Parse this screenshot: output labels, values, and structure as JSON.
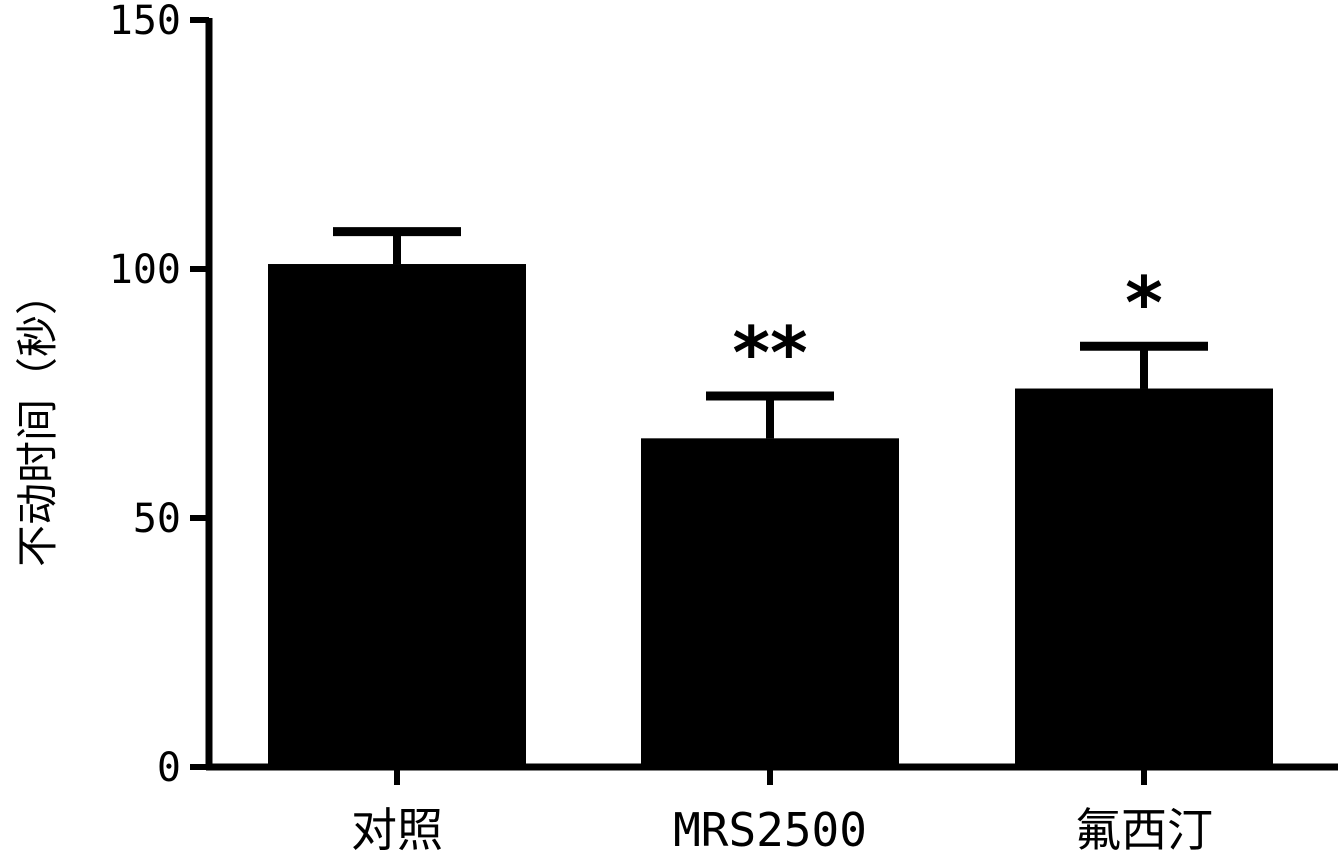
{
  "chart_data": {
    "type": "bar",
    "title": "",
    "xlabel": "",
    "ylabel": "不动时间（秒）",
    "ylim": [
      0,
      150
    ],
    "yticks": [
      0,
      50,
      100,
      150
    ],
    "categories": [
      "对照",
      "MRS2500",
      "氟西汀"
    ],
    "values": [
      101,
      66,
      76
    ],
    "error": [
      6.5,
      8.5,
      8.5
    ],
    "significance": [
      "",
      "**",
      "*"
    ],
    "bar_color": "#000000",
    "grid": false,
    "legend": "none"
  }
}
